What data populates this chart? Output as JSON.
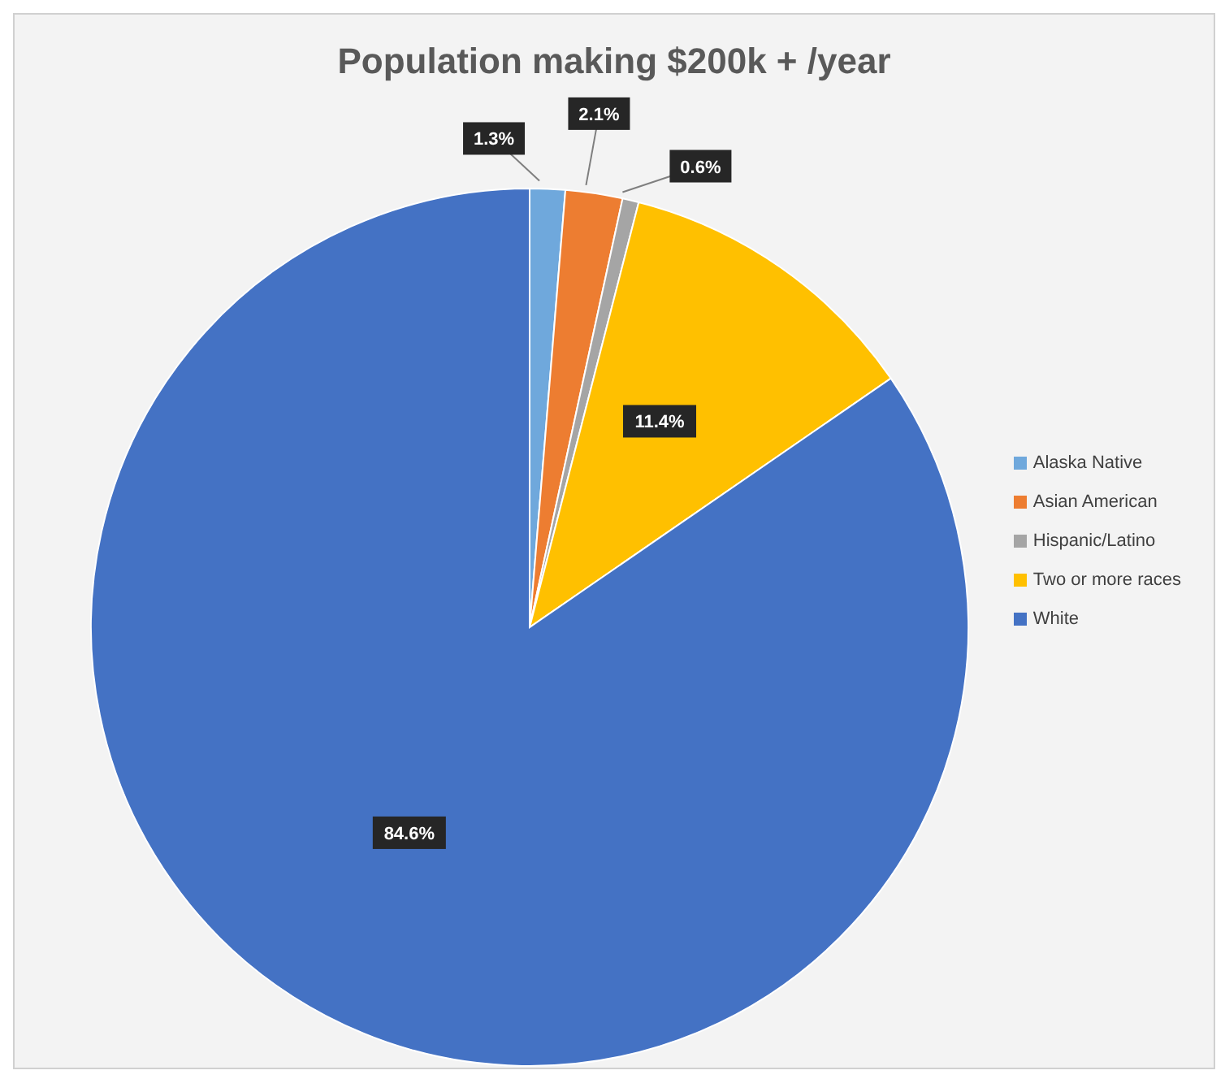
{
  "chart_data": {
    "type": "pie",
    "title": "Population making $200k + /year",
    "categories": [
      "Alaska Native",
      "Asian American",
      "Hispanic/Latino",
      "Two or more races",
      "White"
    ],
    "values": [
      1.3,
      2.1,
      0.6,
      11.4,
      84.6
    ],
    "colors": [
      "#6fa8dc",
      "#ed7d31",
      "#a5a5a5",
      "#ffc000",
      "#4472c4"
    ],
    "value_labels": [
      "1.3%",
      "2.1%",
      "0.6%",
      "11.4%",
      "84.6%"
    ],
    "legend": "right"
  }
}
